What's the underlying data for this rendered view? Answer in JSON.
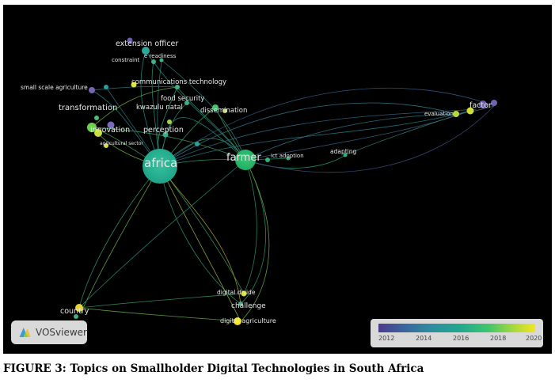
{
  "caption": "FIGURE 3: Topics on Smallholder Digital Technologies in South Africa",
  "badge": {
    "label": "VOSviewer"
  },
  "legend": {
    "ticks": [
      "2012",
      "2014",
      "2016",
      "2018",
      "2020"
    ]
  },
  "terms": {
    "africa": "africa",
    "farmer": "farmer",
    "extension_officer": "extension officer",
    "constraint": "constraint",
    "e_readiness": "e readiness",
    "communications_technology": "communications technology",
    "small_scale_agriculture": "small scale agriculture",
    "transformation": "transformation",
    "kwazulu_natal": "kwazulu natal",
    "food_security": "food security",
    "dissemination": "dissemination",
    "innovation": "innovation",
    "perception": "perception",
    "agricultural_sector": "agricultural sector",
    "ict_adoption": "ict adoption",
    "adapting": "adapting",
    "evaluation": "evaluation",
    "factor": "factor",
    "country": "country",
    "digital_divide": "digital divide",
    "challenge": "challenge",
    "digital_agriculture": "digital agriculture"
  }
}
